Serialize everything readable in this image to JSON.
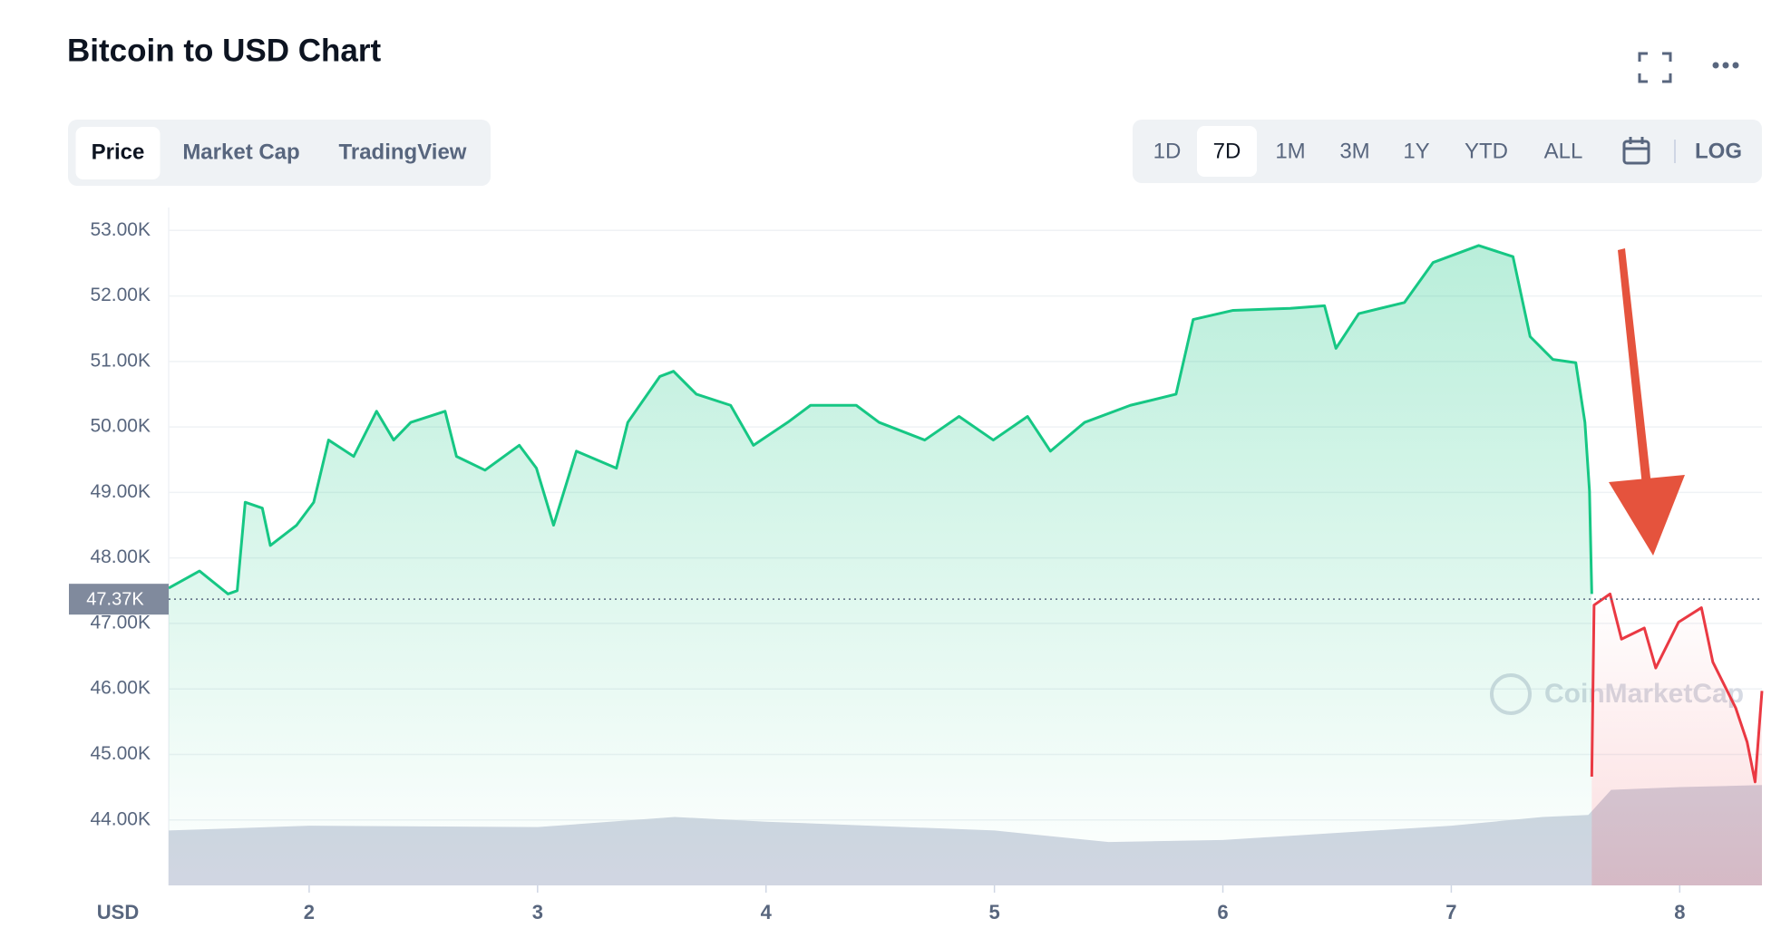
{
  "header": {
    "title": "Bitcoin to USD Chart"
  },
  "tabs": [
    "Price",
    "Market Cap",
    "TradingView"
  ],
  "active_tab": 0,
  "ranges": [
    "1D",
    "7D",
    "1M",
    "3M",
    "1Y",
    "YTD",
    "ALL"
  ],
  "active_range": 1,
  "scale_button": "LOG",
  "chart_data": {
    "type": "line",
    "currency_label": "USD",
    "watermark": "CoinMarketCap",
    "xlim": [
      1.385,
      8.36
    ],
    "xticks": [
      2,
      3,
      4,
      5,
      6,
      7,
      8
    ],
    "ylim": [
      43,
      53.35
    ],
    "yticks": [
      {
        "value": 44,
        "label": "44.00K"
      },
      {
        "value": 45,
        "label": "45.00K"
      },
      {
        "value": 46,
        "label": "46.00K"
      },
      {
        "value": 47,
        "label": "47.00K"
      },
      {
        "value": 48,
        "label": "48.00K"
      },
      {
        "value": 49,
        "label": "49.00K"
      },
      {
        "value": 50,
        "label": "50.00K"
      },
      {
        "value": 51,
        "label": "51.00K"
      },
      {
        "value": 52,
        "label": "52.00K"
      },
      {
        "value": 53,
        "label": "53.00K"
      }
    ],
    "grid": true,
    "reference": {
      "value": 47.37,
      "label": "47.37K"
    },
    "series": [
      {
        "color": "#16c784",
        "x": [
          1.385,
          1.52,
          1.645,
          1.685,
          1.72,
          1.795,
          1.83,
          1.945,
          2.02,
          2.085,
          2.195,
          2.295,
          2.37,
          2.445,
          2.595,
          2.645,
          2.77,
          2.92,
          2.995,
          3.07,
          3.17,
          3.345,
          3.395,
          3.535,
          3.595,
          3.695,
          3.845,
          3.945,
          4.095,
          4.195,
          4.395,
          4.495,
          4.695,
          4.845,
          4.995,
          5.145,
          5.245,
          5.395,
          5.595,
          5.795,
          5.87,
          6.045,
          6.295,
          6.445,
          6.495,
          6.595,
          6.795,
          6.92,
          7.12,
          7.27,
          7.345,
          7.445,
          7.545,
          7.585,
          7.605,
          7.615
        ],
        "values": [
          47.54,
          47.8,
          47.45,
          47.5,
          48.85,
          48.76,
          48.19,
          48.5,
          48.85,
          49.8,
          49.55,
          50.24,
          49.8,
          50.07,
          50.24,
          49.55,
          49.34,
          49.72,
          49.37,
          48.5,
          49.63,
          49.37,
          50.07,
          50.77,
          50.85,
          50.5,
          50.33,
          49.72,
          50.07,
          50.33,
          50.33,
          50.07,
          49.8,
          50.16,
          49.8,
          50.16,
          49.63,
          50.07,
          50.33,
          50.5,
          51.64,
          51.78,
          51.81,
          51.85,
          51.2,
          51.73,
          51.9,
          52.51,
          52.77,
          52.6,
          51.38,
          51.03,
          50.98,
          50.07,
          49.02,
          47.45
        ]
      },
      {
        "color": "#ea3943",
        "x": [
          7.615,
          7.625,
          7.695,
          7.745,
          7.845,
          7.895,
          7.995,
          8.095,
          8.145,
          8.245,
          8.295,
          8.33,
          8.36
        ],
        "values": [
          44.66,
          47.28,
          47.45,
          46.76,
          46.93,
          46.32,
          47.02,
          47.24,
          46.41,
          45.71,
          45.19,
          44.58,
          45.97
        ]
      }
    ],
    "y2lim": [
      0,
      100
    ],
    "volume": {
      "color": "#d1d6e2",
      "axis": "y2",
      "x": [
        1.385,
        2,
        3,
        3.6,
        4,
        5,
        5.5,
        6,
        7,
        7.4,
        7.6,
        7.7,
        8,
        8.36
      ],
      "values": [
        8.1,
        8.8,
        8.6,
        10.1,
        9.4,
        8.1,
        6.4,
        6.7,
        8.8,
        10.1,
        10.4,
        14.1,
        14.5,
        14.8
      ]
    }
  }
}
